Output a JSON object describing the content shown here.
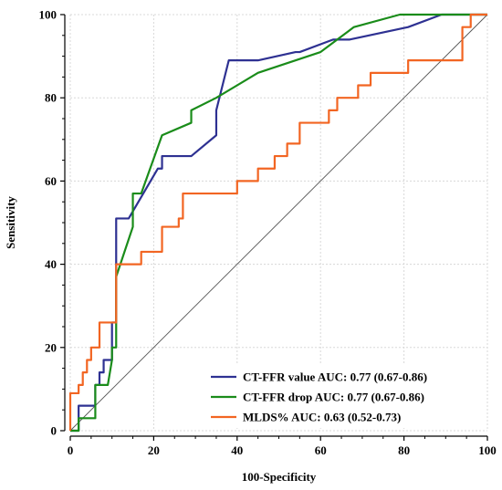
{
  "chart_data": {
    "type": "line",
    "title": "",
    "xlabel": "100-Specificity",
    "ylabel": "Sensitivity",
    "xlim": [
      0,
      100
    ],
    "ylim": [
      0,
      100
    ],
    "xticks": [
      0,
      20,
      40,
      60,
      80,
      100
    ],
    "yticks": [
      0,
      20,
      40,
      60,
      80,
      100
    ],
    "grid": true,
    "legend_position": "bottom-right",
    "reference_line": {
      "from": [
        0,
        0
      ],
      "to": [
        100,
        100
      ],
      "color": "#555555"
    },
    "series": [
      {
        "name": "CT-FFR value AUC: 0.77 (0.67-0.86)",
        "color": "#2e3192",
        "points": [
          [
            0,
            0
          ],
          [
            2,
            0
          ],
          [
            2,
            6
          ],
          [
            6,
            6
          ],
          [
            6,
            11
          ],
          [
            7,
            11
          ],
          [
            7,
            14
          ],
          [
            8,
            14
          ],
          [
            8,
            17
          ],
          [
            10,
            17
          ],
          [
            10,
            26
          ],
          [
            11,
            26
          ],
          [
            11,
            51
          ],
          [
            14,
            51
          ],
          [
            21,
            63
          ],
          [
            22,
            63
          ],
          [
            22,
            66
          ],
          [
            29,
            66
          ],
          [
            35,
            71
          ],
          [
            35,
            77
          ],
          [
            38,
            89
          ],
          [
            45,
            89
          ],
          [
            54,
            91
          ],
          [
            55,
            91
          ],
          [
            63,
            94
          ],
          [
            67,
            94
          ],
          [
            81,
            97
          ],
          [
            89,
            100
          ],
          [
            100,
            100
          ]
        ]
      },
      {
        "name": "CT-FFR drop AUC: 0.77 (0.67-0.86)",
        "color": "#1a8c1a",
        "points": [
          [
            0,
            0
          ],
          [
            2,
            0
          ],
          [
            2,
            3
          ],
          [
            6,
            3
          ],
          [
            6,
            11
          ],
          [
            9,
            11
          ],
          [
            10,
            17
          ],
          [
            10,
            20
          ],
          [
            11,
            20
          ],
          [
            11,
            37
          ],
          [
            15,
            49
          ],
          [
            15,
            57
          ],
          [
            17,
            57
          ],
          [
            22,
            71
          ],
          [
            29,
            74
          ],
          [
            29,
            77
          ],
          [
            35,
            80
          ],
          [
            45,
            86
          ],
          [
            60,
            91
          ],
          [
            68,
            97
          ],
          [
            79,
            100
          ],
          [
            100,
            100
          ]
        ]
      },
      {
        "name": "MLDS% AUC: 0.63 (0.52-0.73)",
        "color": "#f26522",
        "points": [
          [
            0,
            0
          ],
          [
            0,
            9
          ],
          [
            2,
            9
          ],
          [
            2,
            11
          ],
          [
            3,
            11
          ],
          [
            3,
            14
          ],
          [
            4,
            14
          ],
          [
            4,
            17
          ],
          [
            5,
            17
          ],
          [
            5,
            20
          ],
          [
            7,
            20
          ],
          [
            7,
            26
          ],
          [
            11,
            26
          ],
          [
            11,
            40
          ],
          [
            17,
            40
          ],
          [
            17,
            43
          ],
          [
            22,
            43
          ],
          [
            22,
            49
          ],
          [
            26,
            49
          ],
          [
            26,
            51
          ],
          [
            27,
            51
          ],
          [
            27,
            57
          ],
          [
            40,
            57
          ],
          [
            40,
            60
          ],
          [
            45,
            60
          ],
          [
            45,
            63
          ],
          [
            49,
            63
          ],
          [
            49,
            66
          ],
          [
            52,
            66
          ],
          [
            52,
            69
          ],
          [
            55,
            69
          ],
          [
            55,
            74
          ],
          [
            62,
            74
          ],
          [
            62,
            77
          ],
          [
            64,
            77
          ],
          [
            64,
            80
          ],
          [
            69,
            80
          ],
          [
            69,
            83
          ],
          [
            72,
            83
          ],
          [
            72,
            86
          ],
          [
            81,
            86
          ],
          [
            81,
            89
          ],
          [
            94,
            89
          ],
          [
            94,
            97
          ],
          [
            96,
            97
          ],
          [
            96,
            100
          ],
          [
            100,
            100
          ]
        ]
      }
    ]
  }
}
